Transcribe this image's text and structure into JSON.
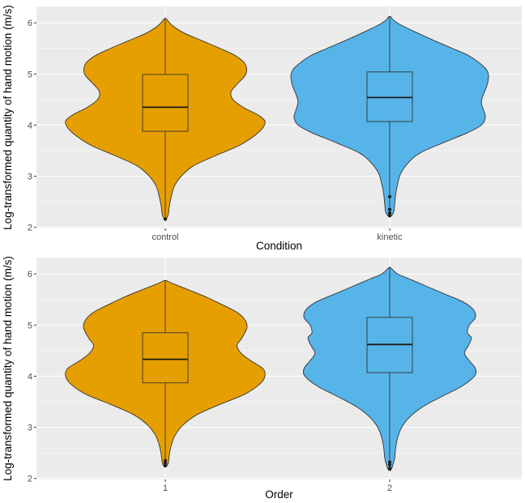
{
  "chart_data": [
    {
      "type": "violin",
      "xlabel": "Condition",
      "ylabel": "Log-transformed quantity of hand motion (m/s)",
      "ylim": [
        1.98,
        6.32
      ],
      "yticks": [
        2,
        3,
        4,
        5,
        6
      ],
      "ytick_labels": [
        "2",
        "3",
        "4",
        "5",
        "6"
      ],
      "grid": true,
      "categories": [
        "control",
        "kinetic"
      ],
      "fill_colors": [
        "#E69F00",
        "#56B4E9"
      ],
      "boxes": [
        {
          "category": "control",
          "q1": 3.88,
          "median": 4.35,
          "q3": 4.99,
          "whisker_low": 2.16,
          "whisker_high": 6.08,
          "outliers": [
            2.16
          ]
        },
        {
          "category": "kinetic",
          "q1": 4.07,
          "median": 4.54,
          "q3": 5.04,
          "whisker_low": 2.21,
          "whisker_high": 6.12,
          "outliers": [
            2.6,
            2.35,
            2.28,
            2.23
          ]
        }
      ],
      "violins": [
        {
          "category": "control",
          "profile": [
            [
              2.16,
              0.01
            ],
            [
              2.25,
              0.03
            ],
            [
              2.4,
              0.04
            ],
            [
              2.6,
              0.06
            ],
            [
              2.8,
              0.09
            ],
            [
              3.0,
              0.16
            ],
            [
              3.2,
              0.28
            ],
            [
              3.4,
              0.5
            ],
            [
              3.6,
              0.74
            ],
            [
              3.8,
              0.9
            ],
            [
              3.95,
              0.98
            ],
            [
              4.08,
              1.0
            ],
            [
              4.2,
              0.93
            ],
            [
              4.35,
              0.78
            ],
            [
              4.5,
              0.68
            ],
            [
              4.65,
              0.66
            ],
            [
              4.8,
              0.72
            ],
            [
              5.0,
              0.81
            ],
            [
              5.2,
              0.8
            ],
            [
              5.35,
              0.71
            ],
            [
              5.5,
              0.55
            ],
            [
              5.65,
              0.37
            ],
            [
              5.8,
              0.19
            ],
            [
              5.95,
              0.07
            ],
            [
              6.08,
              0.01
            ]
          ]
        },
        {
          "category": "kinetic",
          "profile": [
            [
              2.21,
              0.01
            ],
            [
              2.3,
              0.04
            ],
            [
              2.45,
              0.05
            ],
            [
              2.65,
              0.06
            ],
            [
              2.85,
              0.08
            ],
            [
              3.05,
              0.11
            ],
            [
              3.25,
              0.18
            ],
            [
              3.45,
              0.3
            ],
            [
              3.65,
              0.53
            ],
            [
              3.85,
              0.78
            ],
            [
              4.0,
              0.92
            ],
            [
              4.15,
              0.96
            ],
            [
              4.3,
              0.94
            ],
            [
              4.45,
              0.92
            ],
            [
              4.6,
              0.94
            ],
            [
              4.8,
              0.98
            ],
            [
              5.0,
              0.99
            ],
            [
              5.15,
              0.94
            ],
            [
              5.35,
              0.8
            ],
            [
              5.5,
              0.63
            ],
            [
              5.65,
              0.45
            ],
            [
              5.8,
              0.28
            ],
            [
              5.95,
              0.12
            ],
            [
              6.05,
              0.04
            ],
            [
              6.12,
              0.01
            ]
          ]
        }
      ]
    },
    {
      "type": "violin",
      "xlabel": "Order",
      "ylabel": "Log-transformed quantity of hand motion (m/s)",
      "ylim": [
        1.98,
        6.32
      ],
      "yticks": [
        2,
        3,
        4,
        5,
        6
      ],
      "ytick_labels": [
        "2",
        "3",
        "4",
        "5",
        "6"
      ],
      "grid": true,
      "categories": [
        "1",
        "2"
      ],
      "fill_colors": [
        "#E69F00",
        "#56B4E9"
      ],
      "boxes": [
        {
          "category": "1",
          "q1": 3.87,
          "median": 4.33,
          "q3": 4.85,
          "whisker_low": 2.23,
          "whisker_high": 5.87,
          "outliers": [
            2.35,
            2.3,
            2.25
          ]
        },
        {
          "category": "2",
          "q1": 4.07,
          "median": 4.62,
          "q3": 5.15,
          "whisker_low": 2.16,
          "whisker_high": 6.12,
          "outliers": [
            2.32,
            2.27,
            2.2
          ]
        }
      ],
      "violins": [
        {
          "category": "1",
          "profile": [
            [
              2.23,
              0.01
            ],
            [
              2.3,
              0.03
            ],
            [
              2.45,
              0.04
            ],
            [
              2.65,
              0.06
            ],
            [
              2.85,
              0.1
            ],
            [
              3.05,
              0.18
            ],
            [
              3.25,
              0.32
            ],
            [
              3.45,
              0.55
            ],
            [
              3.65,
              0.8
            ],
            [
              3.85,
              0.95
            ],
            [
              4.0,
              1.0
            ],
            [
              4.15,
              0.98
            ],
            [
              4.3,
              0.86
            ],
            [
              4.45,
              0.76
            ],
            [
              4.6,
              0.72
            ],
            [
              4.75,
              0.77
            ],
            [
              4.95,
              0.82
            ],
            [
              5.1,
              0.8
            ],
            [
              5.25,
              0.72
            ],
            [
              5.4,
              0.57
            ],
            [
              5.55,
              0.41
            ],
            [
              5.7,
              0.22
            ],
            [
              5.8,
              0.09
            ],
            [
              5.87,
              0.01
            ]
          ]
        },
        {
          "category": "2",
          "profile": [
            [
              2.16,
              0.01
            ],
            [
              2.25,
              0.03
            ],
            [
              2.4,
              0.05
            ],
            [
              2.6,
              0.06
            ],
            [
              2.8,
              0.08
            ],
            [
              3.0,
              0.12
            ],
            [
              3.2,
              0.2
            ],
            [
              3.4,
              0.33
            ],
            [
              3.6,
              0.52
            ],
            [
              3.8,
              0.72
            ],
            [
              4.0,
              0.85
            ],
            [
              4.15,
              0.86
            ],
            [
              4.3,
              0.8
            ],
            [
              4.45,
              0.75
            ],
            [
              4.6,
              0.79
            ],
            [
              4.75,
              0.82
            ],
            [
              4.85,
              0.78
            ],
            [
              5.0,
              0.8
            ],
            [
              5.15,
              0.86
            ],
            [
              5.3,
              0.84
            ],
            [
              5.45,
              0.74
            ],
            [
              5.6,
              0.56
            ],
            [
              5.75,
              0.38
            ],
            [
              5.9,
              0.2
            ],
            [
              6.0,
              0.08
            ],
            [
              6.12,
              0.01
            ]
          ]
        }
      ]
    }
  ]
}
